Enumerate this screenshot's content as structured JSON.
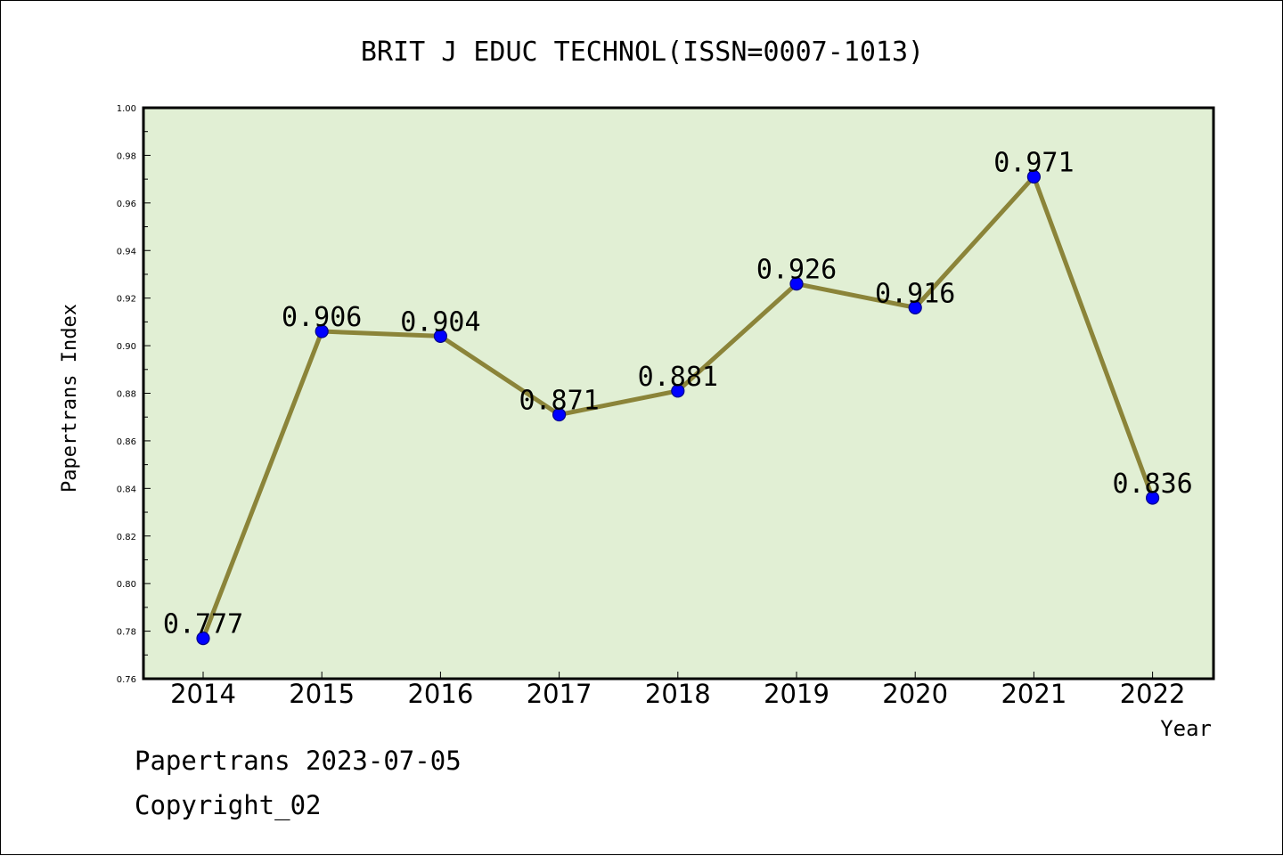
{
  "colors": {
    "plot_background": "#e1efd4",
    "line": "#8b8439",
    "marker_fill": "#0000ff",
    "marker_edge": "#00008b",
    "axis": "#000000"
  },
  "footer": {
    "line1": "Papertrans 2023-07-05",
    "line2": "Copyright_02"
  },
  "chart_data": {
    "type": "line",
    "title": "BRIT J EDUC TECHNOL(ISSN=0007-1013)",
    "xlabel": "Year",
    "ylabel": "Papertrans Index",
    "categories": [
      "2014",
      "2015",
      "2016",
      "2017",
      "2018",
      "2019",
      "2020",
      "2021",
      "2022"
    ],
    "values": [
      0.777,
      0.906,
      0.904,
      0.871,
      0.881,
      0.926,
      0.916,
      0.971,
      0.836
    ],
    "data_labels": [
      "0.777",
      "0.906",
      "0.904",
      "0.871",
      "0.881",
      "0.926",
      "0.916",
      "0.971",
      "0.836"
    ],
    "ylim": [
      0.76,
      1.0
    ],
    "yticks": [
      "0.76",
      "0.78",
      "0.80",
      "0.82",
      "0.84",
      "0.86",
      "0.88",
      "0.90",
      "0.92",
      "0.94",
      "0.96",
      "0.98",
      "1.00"
    ],
    "grid": false,
    "legend": "none"
  }
}
